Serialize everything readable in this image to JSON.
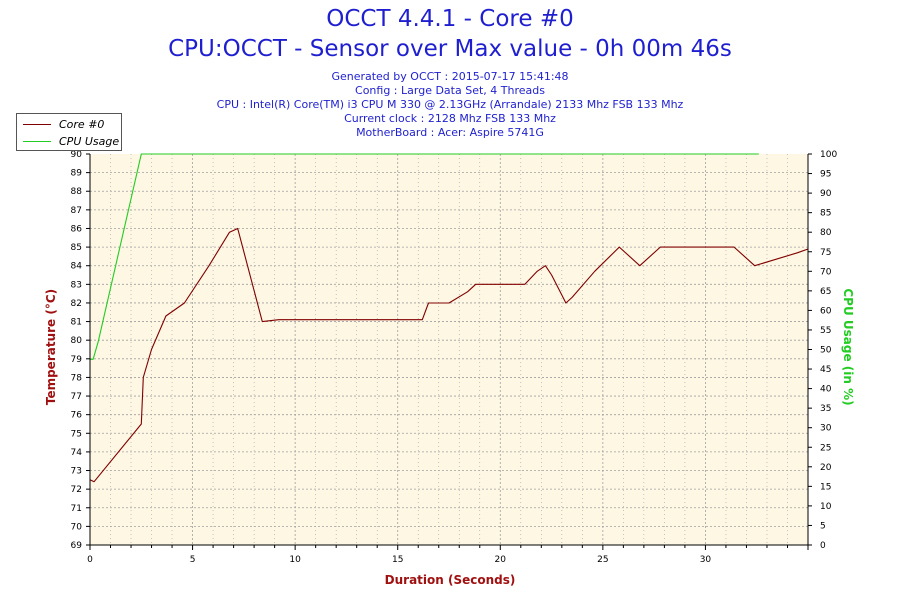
{
  "header": {
    "title": "OCCT 4.4.1 - Core #0",
    "subtitle": "CPU:OCCT - Sensor over Max value - 0h 00m 46s",
    "info_lines": [
      "Generated by OCCT : 2015-07-17 15:41:48",
      "Config : Large Data Set, 4 Threads",
      "CPU : Intel(R) Core(TM) i3 CPU M 330 @ 2.13GHz (Arrandale) 2133 Mhz FSB 133 Mhz",
      "Current clock : 2128 Mhz FSB 133 Mhz",
      "MotherBoard : Acer: Aspire 5741G"
    ]
  },
  "colors": {
    "background": "#ffffff",
    "plot_background": "#fdf7e3",
    "grid": "#a0a0a0",
    "title_blue": "#1f1fd0",
    "temperature_red": "#800000",
    "axis_title_red": "#a01010",
    "cpu_green": "#22cc22"
  },
  "chart_data": {
    "type": "line",
    "title": "OCCT 4.4.1 - Core #0",
    "subtitle": "CPU:OCCT - Sensor over Max value - 0h 00m 46s",
    "xlabel": "Duration (Seconds)",
    "ylabel": "Temperature (°C)",
    "ylabel_right": "CPU Usage (in %)",
    "xlim": [
      0,
      35
    ],
    "ylim": [
      69,
      90
    ],
    "ylim_right": [
      0,
      100
    ],
    "x_ticks": [
      0,
      5,
      10,
      15,
      20,
      25,
      30
    ],
    "y_ticks": [
      69,
      70,
      71,
      72,
      73,
      74,
      75,
      76,
      77,
      78,
      79,
      80,
      81,
      82,
      83,
      84,
      85,
      86,
      87,
      88,
      89,
      90
    ],
    "y_ticks_right": [
      0,
      5,
      10,
      15,
      20,
      25,
      30,
      35,
      40,
      45,
      50,
      55,
      60,
      65,
      70,
      75,
      80,
      85,
      90,
      95,
      100
    ],
    "grid": true,
    "legend_position": "top-left",
    "series": [
      {
        "name": "Core #0",
        "axis": "left",
        "color": "#800000",
        "x": [
          0,
          0.2,
          2.5,
          2.6,
          3,
          3.7,
          4.6,
          5.8,
          6.8,
          7.2,
          8.4,
          9.2,
          16.2,
          16.5,
          17.5,
          18.4,
          18.8,
          20.5,
          21.2,
          21.8,
          22.2,
          22.5,
          23.2,
          23.5,
          24.6,
          25.8,
          26.8,
          27.8,
          30.5,
          31.4,
          32.4,
          34.5,
          35
        ],
        "y": [
          72.5,
          72.4,
          75.5,
          78,
          79.5,
          81.3,
          82,
          84,
          85.8,
          86,
          81,
          81.1,
          81.1,
          82,
          82,
          82.6,
          83,
          83,
          83,
          83.7,
          84,
          83.5,
          82,
          82.3,
          83.7,
          85,
          84,
          85,
          85,
          85,
          84,
          84.7,
          84.9
        ]
      },
      {
        "name": "CPU Usage",
        "axis": "right",
        "color": "#22cc22",
        "x": [
          0,
          0.15,
          0.4,
          2.5,
          32.6
        ],
        "y": [
          47.5,
          47.5,
          52,
          100,
          100
        ]
      }
    ]
  }
}
